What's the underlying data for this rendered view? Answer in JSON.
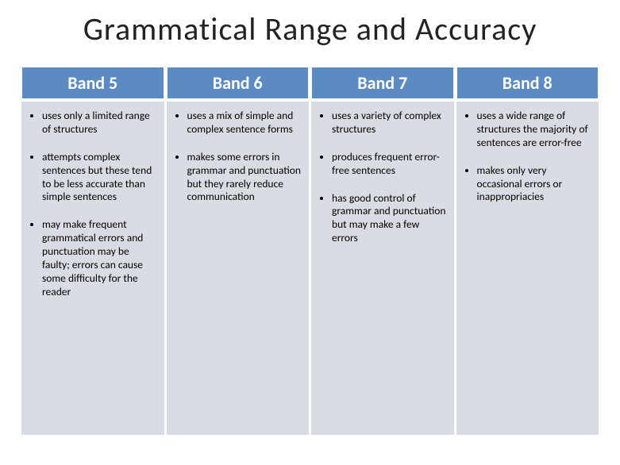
{
  "title": "Grammatical Range and Accuracy",
  "columns": [
    {
      "header": "Band 5",
      "bullets": [
        "uses only a limited range of structures",
        "attempts complex sentences but these tend to be less accurate than simple sentences",
        "may make frequent grammatical errors and punctuation may be faulty; errors can cause some difficulty for the reader"
      ]
    },
    {
      "header": "Band 6",
      "bullets": [
        "uses a mix of simple and complex sentence forms",
        "makes some errors in grammar and punctuation  but they rarely reduce communication"
      ]
    },
    {
      "header": "Band 7",
      "bullets": [
        "uses a variety of complex structures",
        "produces frequent error-free sentences",
        "has good control of grammar and punctuation  but may make  a few errors"
      ]
    },
    {
      "header": "Band 8",
      "bullets": [
        "uses a wide range of structures  the majority of sentences are error-free",
        "makes only very occasional errors or inappropriacies"
      ]
    }
  ],
  "style": {
    "header_bg": "#5b8bc0",
    "header_color": "#ffffff",
    "cell_bg": "#d9dce3",
    "background": "#ffffff",
    "title_fontsize": 40,
    "header_fontsize": 22,
    "body_fontsize": 13.5
  }
}
